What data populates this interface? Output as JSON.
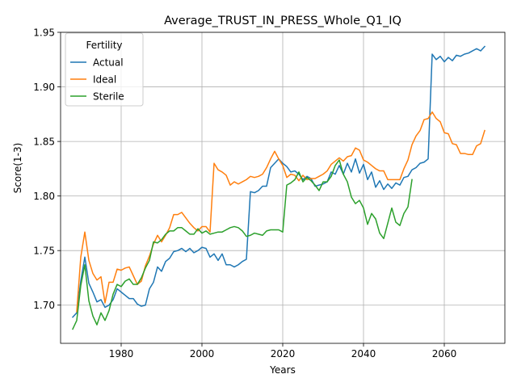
{
  "chart_data": {
    "type": "line",
    "title": "Average_TRUST_IN_PRESS_Whole_Q1_IQ",
    "xlabel": "Years",
    "ylabel": "Score(1-3)",
    "xlim": [
      1965,
      2075
    ],
    "ylim": [
      1.665,
      1.95
    ],
    "xticks": [
      1980,
      2000,
      2020,
      2040,
      2060
    ],
    "yticks": [
      1.7,
      1.75,
      1.8,
      1.85,
      1.9,
      1.95
    ],
    "grid": true,
    "legend": {
      "title": "Fertility",
      "placement": "top-left"
    },
    "series": [
      {
        "name": "Actual",
        "color": "#1f77b4",
        "points": [
          [
            1968,
            1.689
          ],
          [
            1969,
            1.693
          ],
          [
            1970,
            1.722
          ],
          [
            1971,
            1.744
          ],
          [
            1972,
            1.72
          ],
          [
            1973,
            1.712
          ],
          [
            1974,
            1.703
          ],
          [
            1975,
            1.705
          ],
          [
            1976,
            1.698
          ],
          [
            1977,
            1.7
          ],
          [
            1978,
            1.705
          ],
          [
            1979,
            1.715
          ],
          [
            1980,
            1.712
          ],
          [
            1981,
            1.709
          ],
          [
            1982,
            1.706
          ],
          [
            1983,
            1.706
          ],
          [
            1984,
            1.701
          ],
          [
            1985,
            1.699
          ],
          [
            1986,
            1.7
          ],
          [
            1987,
            1.715
          ],
          [
            1988,
            1.721
          ],
          [
            1989,
            1.735
          ],
          [
            1990,
            1.731
          ],
          [
            1991,
            1.74
          ],
          [
            1992,
            1.743
          ],
          [
            1993,
            1.749
          ],
          [
            1994,
            1.75
          ],
          [
            1995,
            1.752
          ],
          [
            1996,
            1.749
          ],
          [
            1997,
            1.752
          ],
          [
            1998,
            1.748
          ],
          [
            1999,
            1.75
          ],
          [
            2000,
            1.753
          ],
          [
            2001,
            1.752
          ],
          [
            2002,
            1.744
          ],
          [
            2003,
            1.747
          ],
          [
            2004,
            1.741
          ],
          [
            2005,
            1.747
          ],
          [
            2006,
            1.737
          ],
          [
            2007,
            1.737
          ],
          [
            2008,
            1.735
          ],
          [
            2009,
            1.737
          ],
          [
            2010,
            1.74
          ],
          [
            2011,
            1.742
          ],
          [
            2012,
            1.804
          ],
          [
            2013,
            1.803
          ],
          [
            2014,
            1.805
          ],
          [
            2015,
            1.809
          ],
          [
            2016,
            1.809
          ],
          [
            2017,
            1.826
          ],
          [
            2018,
            1.83
          ],
          [
            2019,
            1.834
          ],
          [
            2020,
            1.83
          ],
          [
            2021,
            1.827
          ],
          [
            2022,
            1.822
          ],
          [
            2023,
            1.823
          ],
          [
            2024,
            1.82
          ],
          [
            2025,
            1.815
          ],
          [
            2026,
            1.818
          ],
          [
            2027,
            1.816
          ],
          [
            2028,
            1.809
          ],
          [
            2029,
            1.81
          ],
          [
            2030,
            1.811
          ],
          [
            2031,
            1.813
          ],
          [
            2032,
            1.822
          ],
          [
            2033,
            1.82
          ],
          [
            2034,
            1.828
          ],
          [
            2035,
            1.82
          ],
          [
            2036,
            1.83
          ],
          [
            2037,
            1.822
          ],
          [
            2038,
            1.834
          ],
          [
            2039,
            1.821
          ],
          [
            2040,
            1.829
          ],
          [
            2041,
            1.815
          ],
          [
            2042,
            1.822
          ],
          [
            2043,
            1.808
          ],
          [
            2044,
            1.814
          ],
          [
            2045,
            1.806
          ],
          [
            2046,
            1.811
          ],
          [
            2047,
            1.807
          ],
          [
            2048,
            1.812
          ],
          [
            2049,
            1.81
          ],
          [
            2050,
            1.817
          ],
          [
            2051,
            1.818
          ],
          [
            2052,
            1.824
          ],
          [
            2053,
            1.826
          ],
          [
            2054,
            1.83
          ],
          [
            2055,
            1.831
          ],
          [
            2056,
            1.834
          ],
          [
            2057,
            1.93
          ],
          [
            2058,
            1.925
          ],
          [
            2059,
            1.928
          ],
          [
            2060,
            1.923
          ],
          [
            2061,
            1.927
          ],
          [
            2062,
            1.924
          ],
          [
            2063,
            1.929
          ],
          [
            2064,
            1.928
          ],
          [
            2065,
            1.93
          ],
          [
            2066,
            1.931
          ],
          [
            2067,
            1.933
          ],
          [
            2068,
            1.935
          ],
          [
            2069,
            1.933
          ],
          [
            2070,
            1.937
          ]
        ]
      },
      {
        "name": "Ideal",
        "color": "#ff7f0e",
        "points": [
          [
            1969,
            1.694
          ],
          [
            1970,
            1.744
          ],
          [
            1971,
            1.767
          ],
          [
            1972,
            1.741
          ],
          [
            1973,
            1.729
          ],
          [
            1974,
            1.723
          ],
          [
            1975,
            1.726
          ],
          [
            1976,
            1.702
          ],
          [
            1977,
            1.721
          ],
          [
            1978,
            1.721
          ],
          [
            1979,
            1.733
          ],
          [
            1980,
            1.732
          ],
          [
            1981,
            1.734
          ],
          [
            1982,
            1.735
          ],
          [
            1983,
            1.727
          ],
          [
            1984,
            1.719
          ],
          [
            1985,
            1.722
          ],
          [
            1986,
            1.736
          ],
          [
            1987,
            1.745
          ],
          [
            1988,
            1.756
          ],
          [
            1989,
            1.764
          ],
          [
            1990,
            1.758
          ],
          [
            1991,
            1.764
          ],
          [
            1992,
            1.771
          ],
          [
            1993,
            1.783
          ],
          [
            1994,
            1.783
          ],
          [
            1995,
            1.785
          ],
          [
            1996,
            1.78
          ],
          [
            1997,
            1.775
          ],
          [
            1998,
            1.771
          ],
          [
            1999,
            1.768
          ],
          [
            2000,
            1.772
          ],
          [
            2001,
            1.772
          ],
          [
            2002,
            1.767
          ],
          [
            2003,
            1.83
          ],
          [
            2004,
            1.824
          ],
          [
            2005,
            1.822
          ],
          [
            2006,
            1.819
          ],
          [
            2007,
            1.81
          ],
          [
            2008,
            1.813
          ],
          [
            2009,
            1.811
          ],
          [
            2010,
            1.813
          ],
          [
            2011,
            1.815
          ],
          [
            2012,
            1.818
          ],
          [
            2013,
            1.817
          ],
          [
            2014,
            1.818
          ],
          [
            2015,
            1.82
          ],
          [
            2016,
            1.826
          ],
          [
            2017,
            1.834
          ],
          [
            2018,
            1.841
          ],
          [
            2019,
            1.834
          ],
          [
            2020,
            1.828
          ],
          [
            2021,
            1.817
          ],
          [
            2022,
            1.82
          ],
          [
            2023,
            1.819
          ],
          [
            2024,
            1.814
          ],
          [
            2025,
            1.819
          ],
          [
            2026,
            1.815
          ],
          [
            2027,
            1.816
          ],
          [
            2028,
            1.816
          ],
          [
            2029,
            1.818
          ],
          [
            2030,
            1.82
          ],
          [
            2031,
            1.823
          ],
          [
            2032,
            1.829
          ],
          [
            2033,
            1.832
          ],
          [
            2034,
            1.835
          ],
          [
            2035,
            1.832
          ],
          [
            2036,
            1.836
          ],
          [
            2037,
            1.837
          ],
          [
            2038,
            1.844
          ],
          [
            2039,
            1.842
          ],
          [
            2040,
            1.833
          ],
          [
            2041,
            1.831
          ],
          [
            2042,
            1.828
          ],
          [
            2043,
            1.825
          ],
          [
            2044,
            1.823
          ],
          [
            2045,
            1.823
          ],
          [
            2046,
            1.815
          ],
          [
            2047,
            1.815
          ],
          [
            2048,
            1.815
          ],
          [
            2049,
            1.815
          ],
          [
            2050,
            1.825
          ],
          [
            2051,
            1.833
          ],
          [
            2052,
            1.847
          ],
          [
            2053,
            1.855
          ],
          [
            2054,
            1.86
          ],
          [
            2055,
            1.87
          ],
          [
            2056,
            1.871
          ],
          [
            2057,
            1.877
          ],
          [
            2058,
            1.871
          ],
          [
            2059,
            1.868
          ],
          [
            2060,
            1.858
          ],
          [
            2061,
            1.857
          ],
          [
            2062,
            1.848
          ],
          [
            2063,
            1.847
          ],
          [
            2064,
            1.839
          ],
          [
            2065,
            1.839
          ],
          [
            2066,
            1.838
          ],
          [
            2067,
            1.838
          ],
          [
            2068,
            1.846
          ],
          [
            2069,
            1.848
          ],
          [
            2070,
            1.86
          ]
        ]
      },
      {
        "name": "Sterile",
        "color": "#2ca02c",
        "points": [
          [
            1968,
            1.678
          ],
          [
            1969,
            1.686
          ],
          [
            1970,
            1.718
          ],
          [
            1971,
            1.737
          ],
          [
            1972,
            1.704
          ],
          [
            1973,
            1.69
          ],
          [
            1974,
            1.682
          ],
          [
            1975,
            1.693
          ],
          [
            1976,
            1.686
          ],
          [
            1977,
            1.695
          ],
          [
            1978,
            1.71
          ],
          [
            1979,
            1.719
          ],
          [
            1980,
            1.717
          ],
          [
            1981,
            1.722
          ],
          [
            1982,
            1.724
          ],
          [
            1983,
            1.719
          ],
          [
            1984,
            1.719
          ],
          [
            1985,
            1.725
          ],
          [
            1986,
            1.734
          ],
          [
            1987,
            1.741
          ],
          [
            1988,
            1.758
          ],
          [
            1989,
            1.757
          ],
          [
            1990,
            1.76
          ],
          [
            1991,
            1.765
          ],
          [
            1992,
            1.768
          ],
          [
            1993,
            1.768
          ],
          [
            1994,
            1.771
          ],
          [
            1995,
            1.771
          ],
          [
            1996,
            1.768
          ],
          [
            1997,
            1.765
          ],
          [
            1998,
            1.765
          ],
          [
            1999,
            1.77
          ],
          [
            2000,
            1.766
          ],
          [
            2001,
            1.768
          ],
          [
            2002,
            1.765
          ],
          [
            2003,
            1.766
          ],
          [
            2004,
            1.767
          ],
          [
            2005,
            1.767
          ],
          [
            2006,
            1.769
          ],
          [
            2007,
            1.771
          ],
          [
            2008,
            1.772
          ],
          [
            2009,
            1.771
          ],
          [
            2010,
            1.768
          ],
          [
            2011,
            1.763
          ],
          [
            2012,
            1.764
          ],
          [
            2013,
            1.766
          ],
          [
            2014,
            1.765
          ],
          [
            2015,
            1.764
          ],
          [
            2016,
            1.768
          ],
          [
            2017,
            1.769
          ],
          [
            2018,
            1.769
          ],
          [
            2019,
            1.769
          ],
          [
            2020,
            1.767
          ],
          [
            2021,
            1.81
          ],
          [
            2022,
            1.812
          ],
          [
            2023,
            1.815
          ],
          [
            2024,
            1.822
          ],
          [
            2025,
            1.813
          ],
          [
            2026,
            1.817
          ],
          [
            2027,
            1.814
          ],
          [
            2028,
            1.81
          ],
          [
            2029,
            1.805
          ],
          [
            2030,
            1.813
          ],
          [
            2031,
            1.813
          ],
          [
            2032,
            1.818
          ],
          [
            2033,
            1.828
          ],
          [
            2034,
            1.833
          ],
          [
            2035,
            1.82
          ],
          [
            2036,
            1.813
          ],
          [
            2037,
            1.799
          ],
          [
            2038,
            1.793
          ],
          [
            2039,
            1.796
          ],
          [
            2040,
            1.789
          ],
          [
            2041,
            1.774
          ],
          [
            2042,
            1.784
          ],
          [
            2043,
            1.779
          ],
          [
            2044,
            1.766
          ],
          [
            2045,
            1.761
          ],
          [
            2046,
            1.775
          ],
          [
            2047,
            1.789
          ],
          [
            2048,
            1.776
          ],
          [
            2049,
            1.773
          ],
          [
            2050,
            1.784
          ],
          [
            2051,
            1.79
          ],
          [
            2052,
            1.815
          ]
        ]
      }
    ]
  }
}
